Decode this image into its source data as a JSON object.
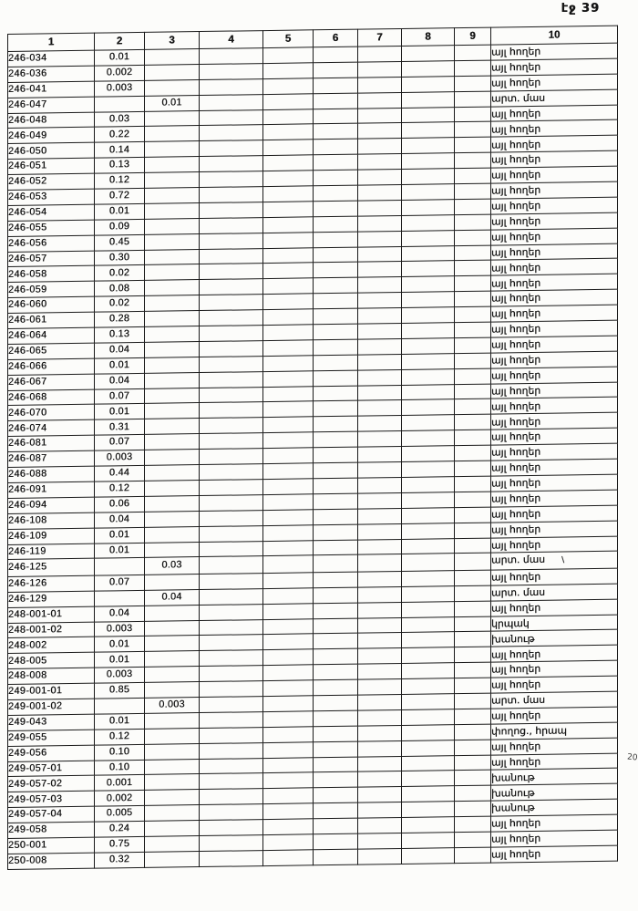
{
  "page": {
    "label": "էջ 39",
    "margin_note": "20"
  },
  "labels": {
    "other_lands": "այլ հողեր",
    "arable_part": "արտ. մաս",
    "kiosk": "կրպակ",
    "shop": "խանութ",
    "street_square": "փողոց., հրապ"
  },
  "table": {
    "headers": [
      "1",
      "2",
      "3",
      "4",
      "5",
      "6",
      "7",
      "8",
      "9",
      "10"
    ],
    "rows": [
      {
        "c1": "246-034",
        "c2": "0.01",
        "c3": "",
        "c10": "այլ հողեր"
      },
      {
        "c1": "246-036",
        "c2": "0.002",
        "c3": "",
        "c10": "այլ հողեր"
      },
      {
        "c1": "246-041",
        "c2": "0.003",
        "c3": "",
        "c10": "այլ հողեր"
      },
      {
        "c1": "246-047",
        "c2": "",
        "c3": "0.01",
        "c10": "արտ. մաս"
      },
      {
        "c1": "246-048",
        "c2": "0.03",
        "c3": "",
        "c10": "այլ հողեր"
      },
      {
        "c1": "246-049",
        "c2": "0.22",
        "c3": "",
        "c10": "այլ հողեր"
      },
      {
        "c1": "246-050",
        "c2": "0.14",
        "c3": "",
        "c10": "այլ հողեր"
      },
      {
        "c1": "246-051",
        "c2": "0.13",
        "c3": "",
        "c10": "այլ հողեր"
      },
      {
        "c1": "246-052",
        "c2": "0.12",
        "c3": "",
        "c10": "այլ հողեր"
      },
      {
        "c1": "246-053",
        "c2": "0.72",
        "c3": "",
        "c10": "այլ հողեր"
      },
      {
        "c1": "246-054",
        "c2": "0.01",
        "c3": "",
        "c10": "այլ հողեր"
      },
      {
        "c1": "246-055",
        "c2": "0.09",
        "c3": "",
        "c10": "այլ հողեր"
      },
      {
        "c1": "246-056",
        "c2": "0.45",
        "c3": "",
        "c10": "այլ հողեր"
      },
      {
        "c1": "246-057",
        "c2": "0.30",
        "c3": "",
        "c10": "այլ հողեր"
      },
      {
        "c1": "246-058",
        "c2": "0.02",
        "c3": "",
        "c10": "այլ հողեր"
      },
      {
        "c1": "246-059",
        "c2": "0.08",
        "c3": "",
        "c10": "այլ հողեր"
      },
      {
        "c1": "246-060",
        "c2": "0.02",
        "c3": "",
        "c10": "այլ հողեր"
      },
      {
        "c1": "246-061",
        "c2": "0.28",
        "c3": "",
        "c10": "այլ հողեր"
      },
      {
        "c1": "246-064",
        "c2": "0.13",
        "c3": "",
        "c10": "այլ հողեր"
      },
      {
        "c1": "246-065",
        "c2": "0.04",
        "c3": "",
        "c10": "այլ հողեր"
      },
      {
        "c1": "246-066",
        "c2": "0.01",
        "c3": "",
        "c10": "այլ հողեր"
      },
      {
        "c1": "246-067",
        "c2": "0.04",
        "c3": "",
        "c10": "այլ հողեր"
      },
      {
        "c1": "246-068",
        "c2": "0.07",
        "c3": "",
        "c10": "այլ հողեր"
      },
      {
        "c1": "246-070",
        "c2": "0.01",
        "c3": "",
        "c10": "այլ հողեր"
      },
      {
        "c1": "246-074",
        "c2": "0.31",
        "c3": "",
        "c10": "այլ հողեր"
      },
      {
        "c1": "246-081",
        "c2": "0.07",
        "c3": "",
        "c10": "այլ հողեր"
      },
      {
        "c1": "246-087",
        "c2": "0.003",
        "c3": "",
        "c10": "այլ հողեր"
      },
      {
        "c1": "246-088",
        "c2": "0.44",
        "c3": "",
        "c10": "այլ հողեր"
      },
      {
        "c1": "246-091",
        "c2": "0.12",
        "c3": "",
        "c10": "այլ հողեր"
      },
      {
        "c1": "246-094",
        "c2": "0.06",
        "c3": "",
        "c10": "այլ հողեր"
      },
      {
        "c1": "246-108",
        "c2": "0.04",
        "c3": "",
        "c10": "այլ հողեր"
      },
      {
        "c1": "246-109",
        "c2": "0.01",
        "c3": "",
        "c10": "այլ հողեր"
      },
      {
        "c1": "246-119",
        "c2": "0.01",
        "c3": "",
        "c10": "այլ հողեր"
      },
      {
        "c1": "246-125",
        "c2": "",
        "c3": "0.03",
        "c10": "արտ. մաս",
        "mark": "\\"
      },
      {
        "c1": "246-126",
        "c2": "0.07",
        "c3": "",
        "c10": "այլ հողեր"
      },
      {
        "c1": "246-129",
        "c2": "",
        "c3": "0.04",
        "c10": "արտ. մաս"
      },
      {
        "c1": "248-001-01",
        "c2": "0.04",
        "c3": "",
        "c10": "այլ հողեր"
      },
      {
        "c1": "248-001-02",
        "c2": "0.003",
        "c3": "",
        "c10": "կրպակ"
      },
      {
        "c1": "248-002",
        "c2": "0.01",
        "c3": "",
        "c10": "խանութ"
      },
      {
        "c1": "248-005",
        "c2": "0.01",
        "c3": "",
        "c10": "այլ հողեր"
      },
      {
        "c1": "248-008",
        "c2": "0.003",
        "c3": "",
        "c10": "այլ հողեր"
      },
      {
        "c1": "249-001-01",
        "c2": "0.85",
        "c3": "",
        "c10": "այլ հողեր"
      },
      {
        "c1": "249-001-02",
        "c2": "",
        "c3": "0.003",
        "c10": "արտ. մաս"
      },
      {
        "c1": "249-043",
        "c2": "0.01",
        "c3": "",
        "c10": "այլ հողեր"
      },
      {
        "c1": "249-055",
        "c2": "0.12",
        "c3": "",
        "c10": "փողոց., հրապ"
      },
      {
        "c1": "249-056",
        "c2": "0.10",
        "c3": "",
        "c10": "այլ հողեր"
      },
      {
        "c1": "249-057-01",
        "c2": "0.10",
        "c3": "",
        "c10": "այլ հողեր"
      },
      {
        "c1": "249-057-02",
        "c2": "0.001",
        "c3": "",
        "c10": "խանութ"
      },
      {
        "c1": "249-057-03",
        "c2": "0.002",
        "c3": "",
        "c10": "խանութ"
      },
      {
        "c1": "249-057-04",
        "c2": "0.005",
        "c3": "",
        "c10": "խանութ"
      },
      {
        "c1": "249-058",
        "c2": "0.24",
        "c3": "",
        "c10": "այլ հողեր"
      },
      {
        "c1": "250-001",
        "c2": "0.75",
        "c3": "",
        "c10": "այլ հողեր"
      },
      {
        "c1": "250-008",
        "c2": "0.32",
        "c3": "",
        "c10": "այլ հողեր"
      }
    ]
  }
}
